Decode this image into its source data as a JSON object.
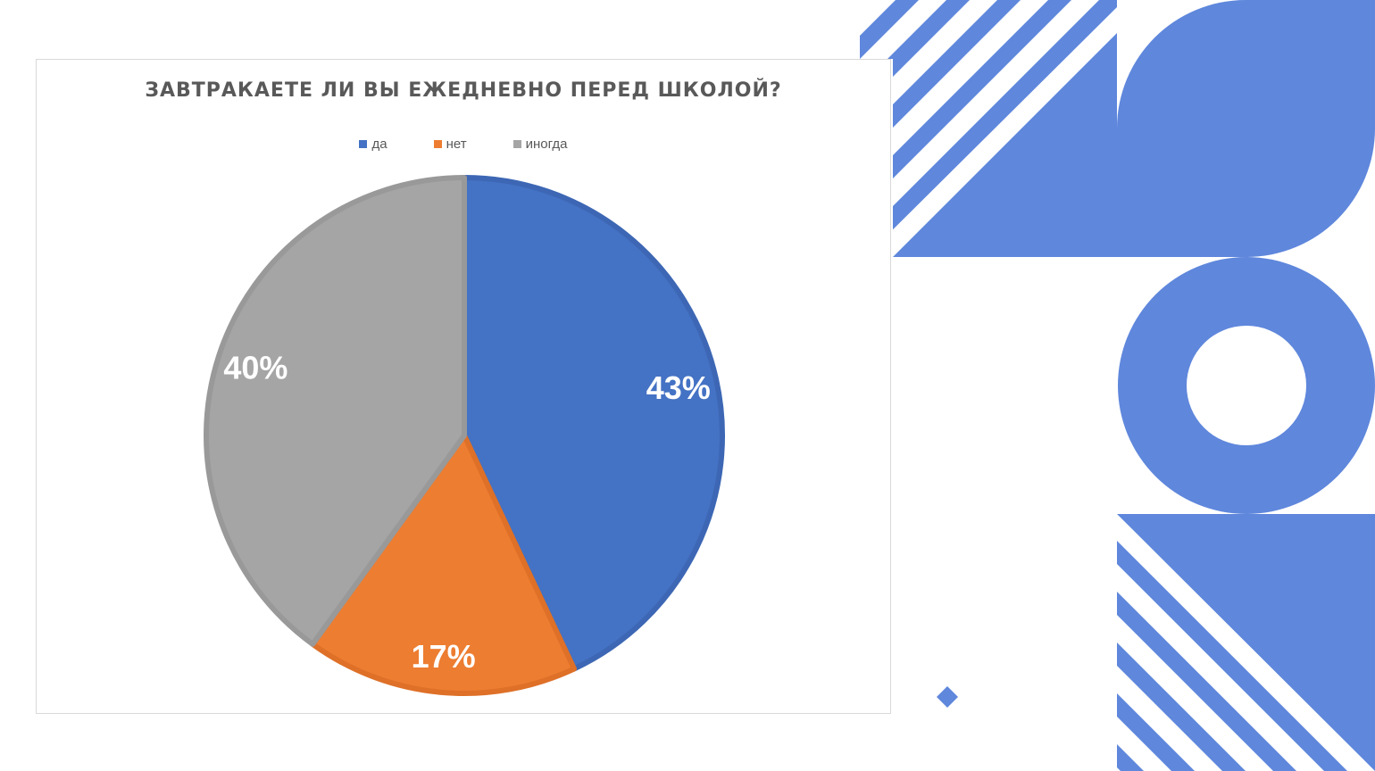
{
  "colors": {
    "da": "#4472c4",
    "net": "#ed7d31",
    "inogda": "#a5a5a5",
    "decoration": "#5f87dc"
  },
  "chart_data": {
    "type": "pie",
    "title": "ЗАВТРАКАЕТЕ ЛИ ВЫ ЕЖЕДНЕВНО ПЕРЕД ШКОЛОЙ?",
    "legend_position": "top",
    "slices": [
      {
        "label": "да",
        "value": 43,
        "data_label": "43%",
        "color": "#4472c4"
      },
      {
        "label": "нет",
        "value": 17,
        "data_label": "17%",
        "color": "#ed7d31"
      },
      {
        "label": "иногда",
        "value": 40,
        "data_label": "40%",
        "color": "#a5a5a5"
      }
    ]
  }
}
